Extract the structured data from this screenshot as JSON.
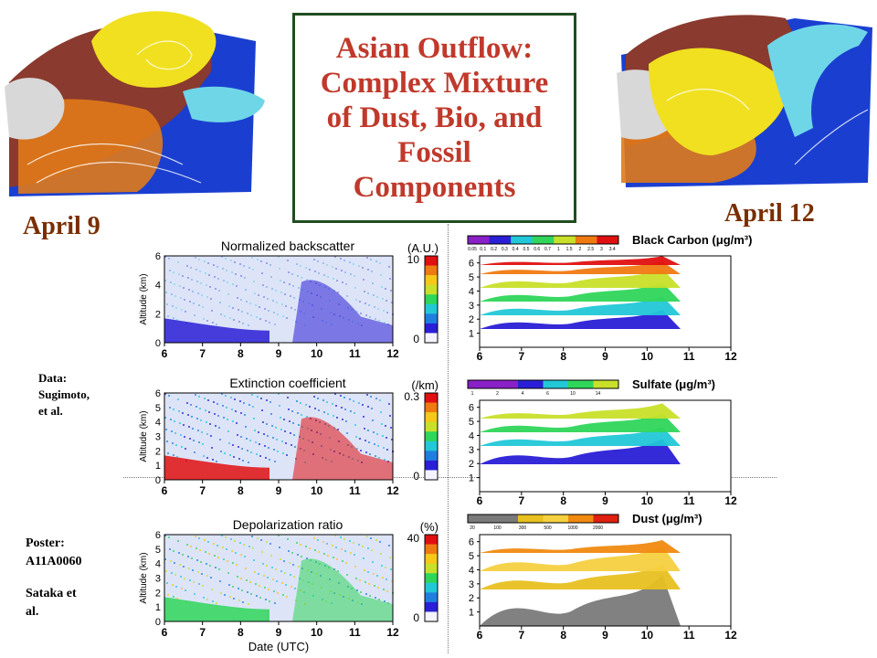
{
  "title_lines": [
    "Asian Outflow:",
    "Complex Mixture",
    "of Dust, Bio, and",
    "Fossil",
    "Components"
  ],
  "date_left": "April 9",
  "date_right": "April 12",
  "data_credit": [
    "Data:",
    "Sugimoto,",
    "et al."
  ],
  "poster_credit": [
    "Poster:",
    "A11A0060"
  ],
  "author_credit": [
    "Sataka et",
    "al."
  ],
  "colors": {
    "title": "#c0392b",
    "dates": "#7a2e00",
    "box_border": "#1f4d1f"
  },
  "chart_data": [
    {
      "type": "heatmap",
      "title": "Normalized backscatter",
      "unit": "(A.U.)",
      "ylabel": "Altitude (km)",
      "xticks": [
        "6",
        "7",
        "8",
        "9",
        "10",
        "11",
        "12"
      ],
      "yticks": [
        "0",
        "2",
        "4",
        "6"
      ],
      "colorbar_ticks": [
        "10",
        "0"
      ],
      "xlim": [
        6,
        12
      ],
      "ylim": [
        0,
        6
      ]
    },
    {
      "type": "heatmap",
      "title": "Extinction coefficient",
      "unit": "(/km)",
      "ylabel": "Altitude (km)",
      "xticks": [
        "6",
        "7",
        "8",
        "9",
        "10",
        "11",
        "12"
      ],
      "yticks": [
        "0",
        "1",
        "2",
        "3",
        "4",
        "5",
        "6"
      ],
      "colorbar_ticks": [
        "0.3",
        "0"
      ],
      "xlim": [
        6,
        12
      ],
      "ylim": [
        0,
        6
      ]
    },
    {
      "type": "heatmap",
      "title": "Depolarization ratio",
      "unit": "(%)",
      "xlabel": "Date (UTC)",
      "ylabel": "Altitude (km)",
      "xticks": [
        "6",
        "7",
        "8",
        "9",
        "10",
        "11",
        "12"
      ],
      "yticks": [
        "0",
        "1",
        "2",
        "3",
        "4",
        "5",
        "6"
      ],
      "colorbar_ticks": [
        "40",
        "0"
      ],
      "xlim": [
        6,
        12
      ],
      "ylim": [
        0,
        6
      ]
    },
    {
      "type": "heatmap",
      "title": "Black Carbon (μg/m³)",
      "legend_ticks": [
        "0.05",
        "0.1",
        "0.2",
        "0.3",
        "0.4",
        "0.5",
        "0.6",
        "0.7",
        "1",
        "1.5",
        "2",
        "2.5",
        "3",
        "3.4"
      ],
      "xticks": [
        "6",
        "7",
        "8",
        "9",
        "10",
        "11",
        "12"
      ],
      "yticks": [
        "1",
        "2",
        "3",
        "4",
        "5",
        "6"
      ],
      "xlim": [
        6,
        12
      ],
      "ylim": [
        0,
        6.5
      ]
    },
    {
      "type": "heatmap",
      "title": "Sulfate (μg/m³)",
      "legend_ticks": [
        "1",
        "2",
        "4",
        "6",
        "10",
        "14"
      ],
      "xticks": [
        "6",
        "7",
        "8",
        "9",
        "10",
        "11",
        "12"
      ],
      "yticks": [
        "1",
        "2",
        "3",
        "4",
        "5",
        "6"
      ],
      "xlim": [
        6,
        12
      ],
      "ylim": [
        0,
        6.5
      ]
    },
    {
      "type": "heatmap",
      "title": "Dust (μg/m³)",
      "legend_ticks": [
        "20",
        "100",
        "300",
        "500",
        "1000",
        "2000"
      ],
      "xticks": [
        "6",
        "7",
        "8",
        "9",
        "10",
        "11",
        "12"
      ],
      "yticks": [
        "1",
        "2",
        "3",
        "4",
        "5",
        "6"
      ],
      "xlim": [
        6,
        12
      ],
      "ylim": [
        0,
        6.5
      ]
    }
  ]
}
